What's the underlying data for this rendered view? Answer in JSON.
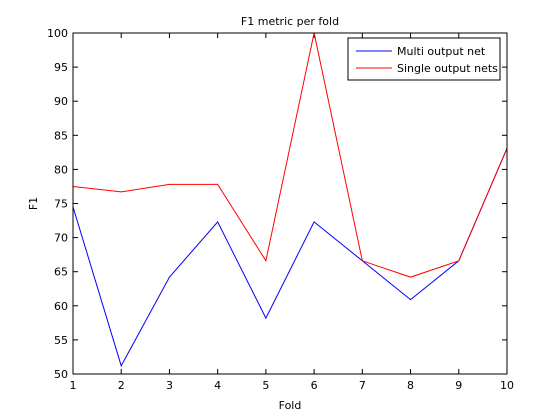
{
  "chart_data": {
    "type": "line",
    "title": "F1 metric per fold",
    "xlabel": "Fold",
    "ylabel": "F1",
    "xlim": [
      1,
      10
    ],
    "ylim": [
      50,
      100
    ],
    "x": [
      1,
      2,
      3,
      4,
      5,
      6,
      7,
      8,
      9,
      10
    ],
    "xticks": [
      "1",
      "2",
      "3",
      "4",
      "5",
      "6",
      "7",
      "8",
      "9",
      "10"
    ],
    "yticks": [
      "50",
      "55",
      "60",
      "65",
      "70",
      "75",
      "80",
      "85",
      "90",
      "95",
      "100"
    ],
    "grid": false,
    "legend_position": "top-right",
    "series": [
      {
        "name": "Multi output net",
        "color": "#0000ff",
        "values": [
          74.5,
          51.2,
          64.2,
          72.3,
          58.2,
          72.3,
          66.6,
          60.9,
          66.6,
          83.1
        ]
      },
      {
        "name": "Single output nets",
        "color": "#ff0000",
        "values": [
          77.5,
          76.7,
          77.8,
          77.8,
          66.6,
          100.0,
          66.6,
          64.2,
          66.6,
          83.1
        ]
      }
    ]
  }
}
